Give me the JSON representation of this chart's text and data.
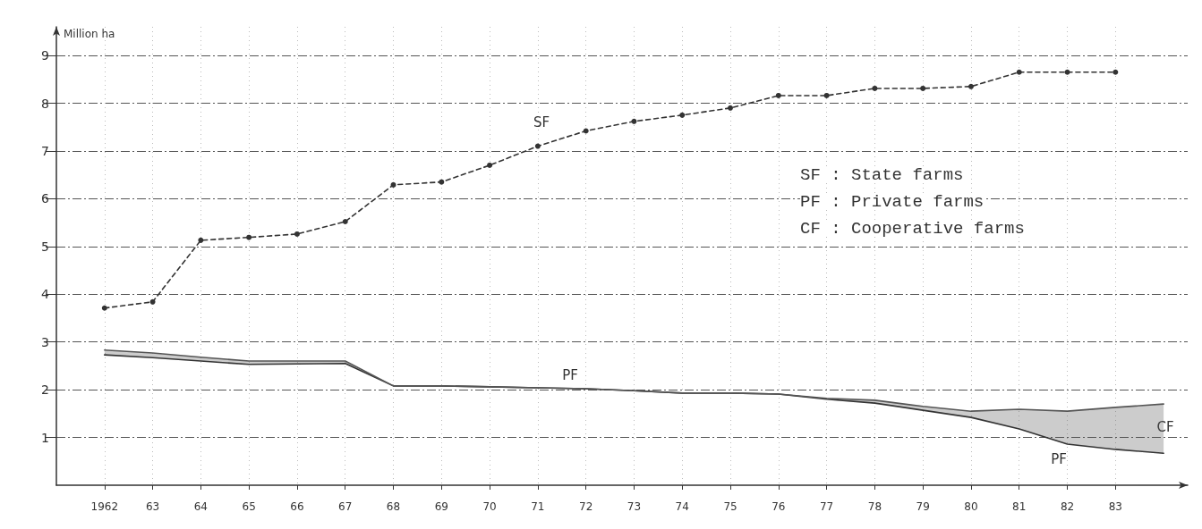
{
  "chart_data": {
    "type": "line",
    "ylabel": "Million ha",
    "x": [
      1962,
      1963,
      1964,
      1965,
      1966,
      1967,
      1968,
      1969,
      1970,
      1971,
      1972,
      1973,
      1974,
      1975,
      1976,
      1977,
      1978,
      1979,
      1980,
      1981,
      1982,
      1983,
      1984
    ],
    "series": [
      {
        "type": "line",
        "color": "#333333",
        "line_style": "dashed",
        "marker": "circle",
        "x": [
          1962,
          1963,
          1964,
          1965,
          1966,
          1967,
          1968,
          1969,
          1970,
          1971,
          1972,
          1973,
          1974,
          1975,
          1976,
          1977,
          1978,
          1979,
          1980,
          1981,
          1982,
          1983
        ],
        "values": [
          3.71,
          3.84,
          5.13,
          5.19,
          5.26,
          5.52,
          6.29,
          6.35,
          6.7,
          7.1,
          7.42,
          7.62,
          7.75,
          7.9,
          8.16,
          8.16,
          8.31,
          8.31,
          8.35,
          8.65,
          8.65,
          8.65
        ]
      },
      {
        "color": "#333333",
        "values": [
          2.73,
          2.67,
          2.6,
          2.53,
          2.54,
          2.55,
          2.08,
          2.08,
          2.06,
          2.04,
          2.02,
          1.98,
          1.93,
          1.93,
          1.91,
          1.8,
          1.72,
          1.57,
          1.42,
          1.18,
          0.86,
          0.75,
          0.67
        ]
      },
      {
        "color": "#555555",
        "values": [
          2.83,
          2.77,
          2.68,
          2.6,
          2.6,
          2.6,
          2.08,
          2.08,
          2.06,
          2.04,
          2.02,
          1.98,
          1.93,
          1.93,
          1.91,
          1.82,
          1.78,
          1.65,
          1.55,
          1.59,
          1.55,
          1.63,
          1.7
        ],
        "lower": [
          2.73,
          2.67,
          2.6,
          2.53,
          2.54,
          2.55,
          2.08,
          2.08,
          2.06,
          2.04,
          2.02,
          1.98,
          1.93,
          1.93,
          1.91,
          1.8,
          1.72,
          1.57,
          1.42,
          1.18,
          0.86,
          0.75,
          0.67
        ],
        "upper": [
          2.83,
          2.77,
          2.68,
          2.6,
          2.6,
          2.6,
          2.08,
          2.08,
          2.06,
          2.04,
          2.02,
          1.98,
          1.93,
          1.93,
          1.91,
          1.82,
          1.78,
          1.65,
          1.55,
          1.59,
          1.55,
          1.63,
          1.7
        ]
      }
    ],
    "xlim": [
      1961,
      1984.5
    ],
    "xticks": [
      1962,
      {
        "value": 1963,
        "label": "63"
      },
      {
        "value": 1964,
        "label": "64"
      },
      {
        "value": 1965,
        "label": "65"
      },
      {
        "value": 1966,
        "label": "66"
      },
      {
        "value": 1967,
        "label": "67"
      },
      {
        "value": 1968,
        "label": "68"
      },
      {
        "value": 1969,
        "label": "69"
      },
      {
        "value": 1970,
        "label": "70"
      },
      {
        "value": 1971,
        "label": "71"
      },
      {
        "value": 1972,
        "label": "72"
      },
      {
        "value": 1973,
        "label": "73"
      },
      {
        "value": 1974,
        "label": "74"
      },
      {
        "value": 1975,
        "label": "75"
      },
      {
        "value": 1976,
        "label": "76"
      },
      {
        "value": 1977,
        "label": "77"
      },
      {
        "value": 1978,
        "label": "78"
      },
      {
        "value": 1979,
        "label": "79"
      },
      {
        "value": 1980,
        "label": "80"
      },
      {
        "value": 1981,
        "label": "81"
      },
      {
        "value": 1982,
        "label": "82"
      },
      {
        "value": 1983,
        "label": "83"
      }
    ],
    "ylim": [
      0,
      9.6
    ],
    "yticks": [
      1,
      2,
      3,
      4,
      5,
      6,
      7,
      8,
      9
    ],
    "grid": true,
    "annotations": [
      "SF",
      "PF",
      "PF",
      "CF",
      "SF : State farms",
      "PF : Private farms",
      "CF : Cooperative farms"
    ]
  }
}
